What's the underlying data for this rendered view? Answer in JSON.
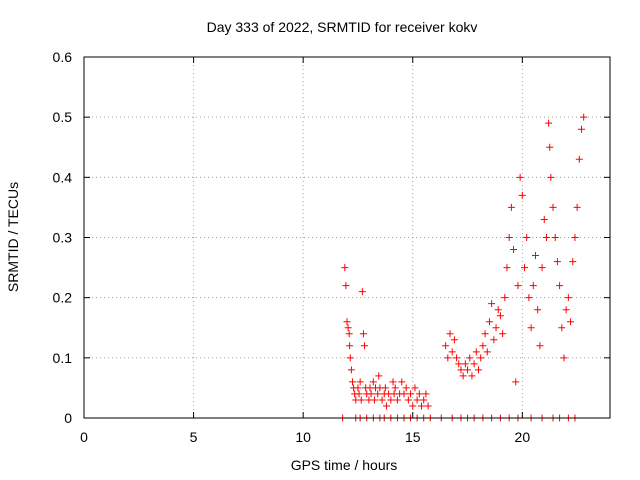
{
  "chart_data": {
    "type": "scatter",
    "title": "Day 333 of 2022, SRMTID for receiver kokv",
    "xlabel": "GPS time / hours",
    "ylabel": "SRMTID / TECUs",
    "xlim": [
      0,
      24
    ],
    "ylim": [
      0,
      0.6
    ],
    "xticks": [
      0,
      5,
      10,
      15,
      20
    ],
    "yticks": [
      0,
      0.1,
      0.2,
      0.3,
      0.4,
      0.5,
      0.6
    ],
    "xtick_labels": [
      "0",
      "5",
      "10",
      "15",
      "20"
    ],
    "ytick_labels": [
      "0",
      "0.1",
      "0.2",
      "0.3",
      "0.4",
      "0.5",
      "0.6"
    ],
    "grid": true,
    "marker": "+",
    "color": "#ff0000",
    "series": [
      {
        "name": "SRMTID",
        "points": [
          [
            11.9,
            0.25
          ],
          [
            11.95,
            0.22
          ],
          [
            12.0,
            0.16
          ],
          [
            12.05,
            0.15
          ],
          [
            12.1,
            0.14
          ],
          [
            12.12,
            0.12
          ],
          [
            12.15,
            0.1
          ],
          [
            12.2,
            0.08
          ],
          [
            12.25,
            0.06
          ],
          [
            12.3,
            0.05
          ],
          [
            12.35,
            0.04
          ],
          [
            12.4,
            0.03
          ],
          [
            12.5,
            0.05
          ],
          [
            12.55,
            0.04
          ],
          [
            12.6,
            0.06
          ],
          [
            12.65,
            0.03
          ],
          [
            12.7,
            0.21
          ],
          [
            12.75,
            0.14
          ],
          [
            12.8,
            0.12
          ],
          [
            12.85,
            0.05
          ],
          [
            12.9,
            0.04
          ],
          [
            13.0,
            0.03
          ],
          [
            13.05,
            0.05
          ],
          [
            13.1,
            0.04
          ],
          [
            13.2,
            0.06
          ],
          [
            13.25,
            0.03
          ],
          [
            13.3,
            0.05
          ],
          [
            13.4,
            0.04
          ],
          [
            13.45,
            0.07
          ],
          [
            13.5,
            0.05
          ],
          [
            13.6,
            0.03
          ],
          [
            13.7,
            0.04
          ],
          [
            13.75,
            0.05
          ],
          [
            13.8,
            0.02
          ],
          [
            13.9,
            0.04
          ],
          [
            14.0,
            0.03
          ],
          [
            14.1,
            0.06
          ],
          [
            14.15,
            0.04
          ],
          [
            14.2,
            0.05
          ],
          [
            14.3,
            0.03
          ],
          [
            14.4,
            0.04
          ],
          [
            14.5,
            0.06
          ],
          [
            14.6,
            0.04
          ],
          [
            14.7,
            0.05
          ],
          [
            14.8,
            0.03
          ],
          [
            14.9,
            0.04
          ],
          [
            15.0,
            0.02
          ],
          [
            15.1,
            0.05
          ],
          [
            15.2,
            0.03
          ],
          [
            15.3,
            0.04
          ],
          [
            15.4,
            0.02
          ],
          [
            15.5,
            0.03
          ],
          [
            15.6,
            0.04
          ],
          [
            15.7,
            0.02
          ],
          [
            16.5,
            0.12
          ],
          [
            16.6,
            0.1
          ],
          [
            16.7,
            0.14
          ],
          [
            16.8,
            0.11
          ],
          [
            16.9,
            0.13
          ],
          [
            17.0,
            0.1
          ],
          [
            17.1,
            0.09
          ],
          [
            17.2,
            0.08
          ],
          [
            17.3,
            0.07
          ],
          [
            17.4,
            0.09
          ],
          [
            17.5,
            0.08
          ],
          [
            17.6,
            0.1
          ],
          [
            17.7,
            0.07
          ],
          [
            17.8,
            0.09
          ],
          [
            17.9,
            0.11
          ],
          [
            18.0,
            0.08
          ],
          [
            18.1,
            0.1
          ],
          [
            18.2,
            0.12
          ],
          [
            18.3,
            0.14
          ],
          [
            18.4,
            0.11
          ],
          [
            18.5,
            0.16
          ],
          [
            18.6,
            0.19
          ],
          [
            18.7,
            0.13
          ],
          [
            18.8,
            0.15
          ],
          [
            18.9,
            0.18
          ],
          [
            19.0,
            0.17
          ],
          [
            19.1,
            0.14
          ],
          [
            19.2,
            0.2
          ],
          [
            19.3,
            0.25
          ],
          [
            19.4,
            0.3
          ],
          [
            19.5,
            0.35
          ],
          [
            19.6,
            0.28
          ],
          [
            19.7,
            0.06
          ],
          [
            19.8,
            0.22
          ],
          [
            19.9,
            0.4
          ],
          [
            20.0,
            0.37
          ],
          [
            20.1,
            0.25
          ],
          [
            20.2,
            0.3
          ],
          [
            20.3,
            0.2
          ],
          [
            20.4,
            0.15
          ],
          [
            20.5,
            0.22
          ],
          [
            20.6,
            0.27
          ],
          [
            20.7,
            0.18
          ],
          [
            20.8,
            0.12
          ],
          [
            20.9,
            0.25
          ],
          [
            21.0,
            0.33
          ],
          [
            21.1,
            0.3
          ],
          [
            21.2,
            0.49
          ],
          [
            21.25,
            0.45
          ],
          [
            21.3,
            0.4
          ],
          [
            21.4,
            0.35
          ],
          [
            21.5,
            0.3
          ],
          [
            21.6,
            0.26
          ],
          [
            21.7,
            0.22
          ],
          [
            21.8,
            0.15
          ],
          [
            21.9,
            0.1
          ],
          [
            22.0,
            0.18
          ],
          [
            22.1,
            0.2
          ],
          [
            22.2,
            0.16
          ],
          [
            22.3,
            0.26
          ],
          [
            22.4,
            0.3
          ],
          [
            22.5,
            0.35
          ],
          [
            22.6,
            0.43
          ],
          [
            22.7,
            0.48
          ],
          [
            22.8,
            0.5
          ]
        ],
        "zero_points_x": [
          11.8,
          12.4,
          12.6,
          12.9,
          13.2,
          13.5,
          13.7,
          14.0,
          14.3,
          14.6,
          14.9,
          15.2,
          15.5,
          15.8,
          16.3,
          16.8,
          17.2,
          17.5,
          17.8,
          18.2,
          18.6,
          19.0,
          19.4,
          19.8,
          20.4,
          20.9,
          21.4,
          21.7,
          22.1,
          22.4
        ]
      }
    ]
  }
}
